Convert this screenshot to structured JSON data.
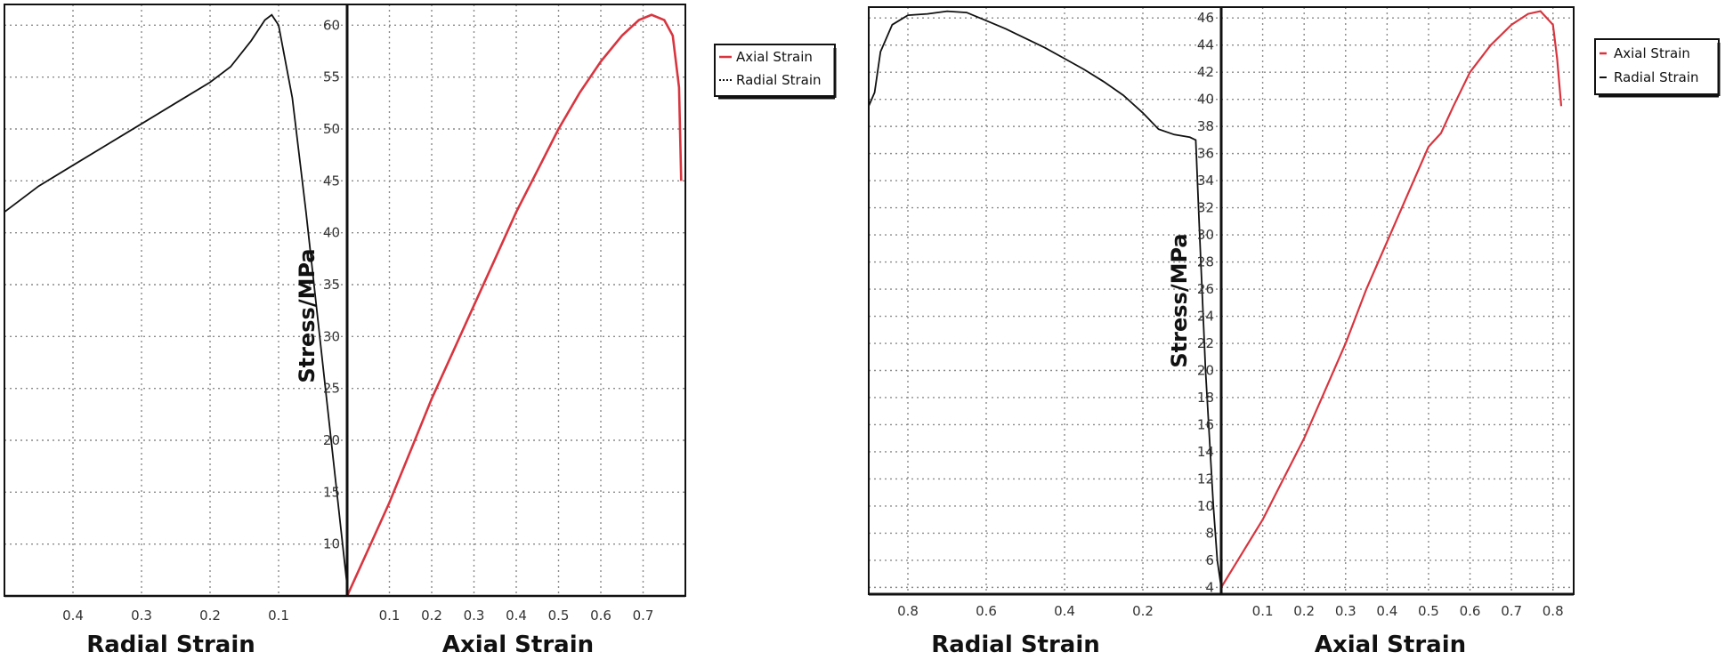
{
  "chart_data": [
    {
      "type": "line",
      "ylabel": "Stress/MPa",
      "left_xlabel": "Radial Strain",
      "right_xlabel": "Axial Strain",
      "y_ticks": [
        10,
        15,
        20,
        25,
        30,
        35,
        40,
        45,
        50,
        55,
        60
      ],
      "ylim": [
        5,
        62
      ],
      "radial_ticks": [
        0.4,
        0.3,
        0.2,
        0.1
      ],
      "radial_xlim": [
        0.5,
        0
      ],
      "axial_ticks": [
        0.1,
        0.2,
        0.3,
        0.4,
        0.5,
        0.6,
        0.7
      ],
      "axial_xlim": [
        0,
        0.8
      ],
      "legend": [
        "Axial Strain",
        "Radial Strain"
      ],
      "colors": {
        "axial": "#d8353f",
        "radial": "#111111"
      },
      "series": [
        {
          "name": "Axial Strain",
          "x": [
            0,
            0.05,
            0.1,
            0.15,
            0.2,
            0.25,
            0.3,
            0.35,
            0.4,
            0.45,
            0.5,
            0.55,
            0.6,
            0.65,
            0.69,
            0.72,
            0.75,
            0.77,
            0.785,
            0.79
          ],
          "y": [
            5,
            9.5,
            14,
            19,
            24,
            28.5,
            33,
            37.5,
            42,
            46,
            50,
            53.5,
            56.5,
            59,
            60.5,
            61,
            60.5,
            59,
            54,
            45
          ]
        },
        {
          "name": "Radial Strain",
          "x": [
            0.5,
            0.45,
            0.4,
            0.35,
            0.3,
            0.25,
            0.2,
            0.17,
            0.14,
            0.12,
            0.11,
            0.1,
            0.08,
            0.06,
            0.04,
            0.02,
            0.01,
            0
          ],
          "y": [
            42,
            44.5,
            46.5,
            48.5,
            50.5,
            52.5,
            54.5,
            56,
            58.5,
            60.5,
            61,
            60,
            53,
            42,
            30,
            18,
            12,
            6
          ]
        }
      ]
    },
    {
      "type": "line",
      "ylabel": "Stress/MPa",
      "left_xlabel": "Radial Strain",
      "right_xlabel": "Axial Strain",
      "y_ticks": [
        4,
        6,
        8,
        10,
        12,
        14,
        16,
        18,
        20,
        22,
        24,
        26,
        28,
        30,
        32,
        34,
        36,
        38,
        40,
        42,
        44,
        46
      ],
      "ylim": [
        3.5,
        46.8
      ],
      "radial_ticks": [
        0.8,
        0.6,
        0.4,
        0.2
      ],
      "radial_xlim": [
        0.9,
        0
      ],
      "axial_ticks": [
        0.1,
        0.2,
        0.3,
        0.4,
        0.5,
        0.6,
        0.7,
        0.8
      ],
      "axial_xlim": [
        0,
        0.85
      ],
      "legend": [
        "Axial Strain",
        "Radial Strain"
      ],
      "colors": {
        "axial": "#d8353f",
        "radial": "#111111"
      },
      "series": [
        {
          "name": "Axial Strain",
          "x": [
            0,
            0.05,
            0.1,
            0.15,
            0.2,
            0.25,
            0.3,
            0.35,
            0.4,
            0.45,
            0.5,
            0.53,
            0.56,
            0.6,
            0.65,
            0.7,
            0.74,
            0.77,
            0.8,
            0.81,
            0.82
          ],
          "y": [
            4,
            6.5,
            9,
            12,
            15,
            18.5,
            22,
            26,
            29.5,
            33,
            36.5,
            37.5,
            39.5,
            42,
            44,
            45.5,
            46.3,
            46.5,
            45.5,
            43,
            39.5
          ]
        },
        {
          "name": "Radial Strain",
          "x": [
            0.9,
            0.885,
            0.87,
            0.84,
            0.8,
            0.75,
            0.7,
            0.65,
            0.6,
            0.55,
            0.5,
            0.45,
            0.4,
            0.35,
            0.3,
            0.25,
            0.2,
            0.16,
            0.12,
            0.08,
            0.065,
            0.055,
            0.04,
            0.02,
            0.01,
            0
          ],
          "y": [
            39.5,
            40.5,
            43.5,
            45.5,
            46.2,
            46.3,
            46.5,
            46.4,
            45.8,
            45.2,
            44.5,
            43.8,
            43,
            42.2,
            41.3,
            40.3,
            39,
            37.8,
            37.4,
            37.2,
            37,
            30,
            20,
            10,
            6,
            4
          ]
        }
      ]
    }
  ]
}
